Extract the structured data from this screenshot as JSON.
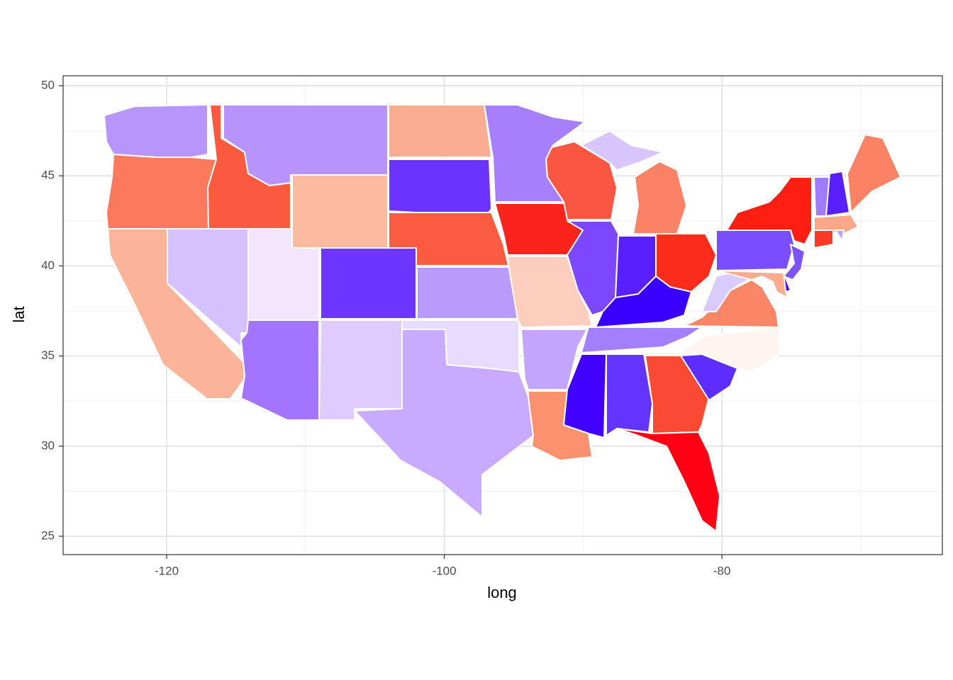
{
  "chart_data": {
    "type": "map",
    "xlabel": "long",
    "ylabel": "lat",
    "xlim": [
      -127.46,
      -64.12
    ],
    "ylim": [
      23.98,
      50.55
    ],
    "xticks": [
      -120,
      -100,
      -80
    ],
    "yticks": [
      25,
      30,
      35,
      40,
      45,
      50
    ],
    "grid": true,
    "fills": [
      "#b895fb",
      "#fb7a5d",
      "#fbb49a",
      "#fb5a3f",
      "#d5c1fd",
      "#b893fc",
      "#fcbba1",
      "#f2e6fe",
      "#a374fd",
      "#6e35ff",
      "#dfcbfe",
      "#fbad91",
      "#6c33ff",
      "#fb5b41",
      "#b99bfb",
      "#e8dcfe",
      "#c8aafe",
      "#a77ffd",
      "#fb241c",
      "#fdcdbd",
      "#c3a5fd",
      "#fb916f",
      "#fb5641",
      "#d8c5fd",
      "#fb8266",
      "#7d47ff",
      "#5a1fff",
      "#fb2c1c",
      "#3a00ff",
      "#a37ffd",
      "#4200ff",
      "#6434ff",
      "#fb4a33",
      "#ff0014",
      "#5d2cff",
      "#fff5f0",
      "#fb8667",
      "#dacbfd",
      "#7a4dff",
      "#ff1f12",
      "#7f52ff",
      "#fcab8f",
      "#4a10ff",
      "#a07cfd",
      "#5a1fff",
      "#fb8265",
      "#fca68a",
      "#fb3a25",
      "#b9a5fb"
    ]
  }
}
